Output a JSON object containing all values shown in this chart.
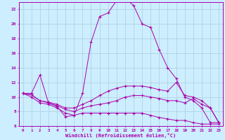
{
  "xlabel": "Windchill (Refroidissement éolien,°C)",
  "xlim": [
    -0.5,
    23.5
  ],
  "ylim": [
    6,
    23
  ],
  "yticks": [
    6,
    8,
    10,
    12,
    14,
    16,
    18,
    20,
    22
  ],
  "xticks": [
    0,
    1,
    2,
    3,
    4,
    5,
    6,
    7,
    8,
    9,
    10,
    11,
    12,
    13,
    14,
    15,
    16,
    17,
    18,
    19,
    20,
    21,
    22,
    23
  ],
  "background_color": "#cceeff",
  "grid_color": "#aaccdd",
  "line_color": "#aa00aa",
  "lines": [
    {
      "x": [
        0,
        1,
        2,
        3,
        4,
        5,
        6,
        7,
        8,
        9,
        10,
        11,
        12,
        13,
        14,
        15,
        16,
        17,
        18,
        19,
        20,
        21,
        22,
        23
      ],
      "y": [
        10.5,
        10.5,
        13.0,
        9.2,
        8.7,
        7.3,
        7.5,
        10.5,
        17.5,
        21.0,
        21.5,
        23.2,
        23.5,
        22.5,
        20.0,
        19.5,
        16.5,
        14.0,
        12.5,
        10.0,
        9.5,
        8.5,
        6.5,
        6.5
      ]
    },
    {
      "x": [
        0,
        1,
        2,
        3,
        4,
        5,
        6,
        7,
        8,
        9,
        10,
        11,
        12,
        13,
        14,
        15,
        16,
        17,
        18,
        19,
        20,
        21,
        22,
        23
      ],
      "y": [
        10.5,
        10.3,
        9.5,
        9.3,
        9.0,
        8.5,
        8.5,
        9.0,
        9.5,
        10.2,
        10.8,
        11.2,
        11.5,
        11.5,
        11.5,
        11.3,
        11.0,
        10.8,
        12.0,
        10.2,
        10.0,
        9.5,
        8.5,
        6.5
      ]
    },
    {
      "x": [
        0,
        1,
        2,
        3,
        4,
        5,
        6,
        7,
        8,
        9,
        10,
        11,
        12,
        13,
        14,
        15,
        16,
        17,
        18,
        19,
        20,
        21,
        22,
        23
      ],
      "y": [
        10.5,
        10.3,
        9.5,
        9.2,
        8.8,
        8.3,
        8.0,
        8.5,
        8.8,
        9.0,
        9.2,
        9.5,
        10.0,
        10.2,
        10.2,
        10.0,
        9.8,
        9.5,
        9.5,
        9.2,
        9.8,
        9.0,
        8.5,
        6.5
      ]
    },
    {
      "x": [
        0,
        1,
        2,
        3,
        4,
        5,
        6,
        7,
        8,
        9,
        10,
        11,
        12,
        13,
        14,
        15,
        16,
        17,
        18,
        19,
        20,
        21,
        22,
        23
      ],
      "y": [
        10.5,
        10.0,
        9.2,
        9.0,
        8.5,
        7.8,
        7.5,
        7.8,
        7.8,
        7.8,
        7.8,
        7.8,
        7.8,
        7.8,
        7.8,
        7.5,
        7.2,
        7.0,
        6.8,
        6.8,
        6.5,
        6.3,
        6.3,
        6.3
      ]
    }
  ]
}
